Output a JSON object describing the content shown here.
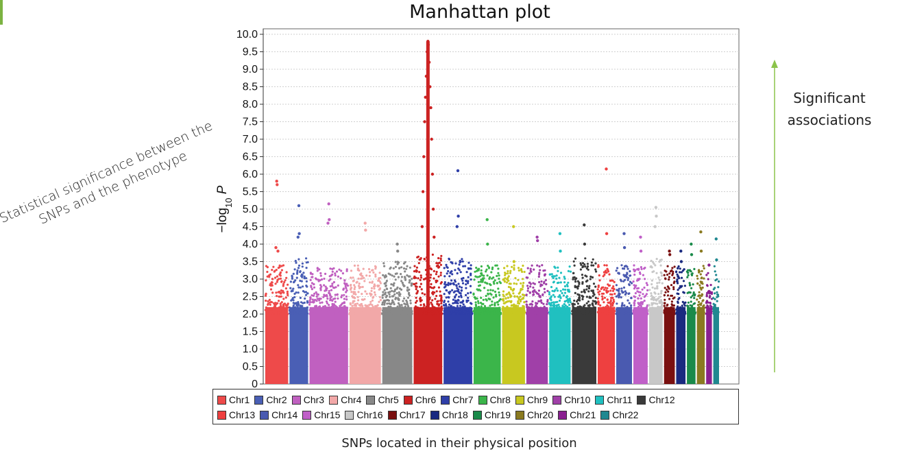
{
  "title": "Manhattan plot",
  "rotated_note": "Statistical significance between the SNPs and the phenotype",
  "significant_label": "Significant associations",
  "bottom_caption": "SNPs located in their physical position",
  "arrow_color": "#8bc34a",
  "chart_data": {
    "type": "scatter",
    "subtype": "manhattan",
    "ylabel": "-log10 P",
    "ylim": [
      0,
      10
    ],
    "yticks": [
      "0",
      "0.5",
      "1.0",
      "1.5",
      "2.0",
      "2.5",
      "3.0",
      "3.5",
      "4.0",
      "4.5",
      "5.0",
      "5.5",
      "6.0",
      "6.5",
      "7.0",
      "7.5",
      "8.0",
      "8.5",
      "9.0",
      "9.5",
      "10.0"
    ],
    "grid": true,
    "legend_position": "bottom",
    "series": [
      {
        "name": "Chr1",
        "color": "#ee4a4a",
        "typical_max": 3.0,
        "top_peaks": [
          5.8,
          5.7,
          3.9,
          3.8
        ]
      },
      {
        "name": "Chr2",
        "color": "#4a5fb5",
        "typical_max": 3.2,
        "top_peaks": [
          5.1,
          4.3,
          4.2
        ]
      },
      {
        "name": "Chr3",
        "color": "#c060c0",
        "typical_max": 3.0,
        "top_peaks": [
          5.15,
          4.7,
          4.6
        ]
      },
      {
        "name": "Chr4",
        "color": "#f2a8a8",
        "typical_max": 3.0,
        "top_peaks": [
          4.6,
          4.4
        ]
      },
      {
        "name": "Chr5",
        "color": "#888888",
        "typical_max": 3.1,
        "top_peaks": [
          4.0,
          3.8
        ]
      },
      {
        "name": "Chr6",
        "color": "#cc2222",
        "typical_max": 3.3,
        "top_peaks": [
          9.8,
          9.7,
          9.5,
          9.2,
          8.8,
          8.5,
          8.2,
          7.9,
          7.5,
          7.0,
          6.5,
          6.0,
          5.5,
          5.0,
          4.5,
          4.2
        ]
      },
      {
        "name": "Chr7",
        "color": "#2f3fa8",
        "typical_max": 3.2,
        "top_peaks": [
          6.1,
          4.8,
          4.5
        ]
      },
      {
        "name": "Chr8",
        "color": "#3bb54a",
        "typical_max": 3.0,
        "top_peaks": [
          4.7,
          4.0
        ]
      },
      {
        "name": "Chr9",
        "color": "#c8c820",
        "typical_max": 3.0,
        "top_peaks": [
          4.5,
          3.5
        ]
      },
      {
        "name": "Chr10",
        "color": "#a040a8",
        "typical_max": 3.0,
        "top_peaks": [
          4.2,
          4.1
        ]
      },
      {
        "name": "Chr11",
        "color": "#20c0c0",
        "typical_max": 3.0,
        "top_peaks": [
          4.3,
          3.8
        ]
      },
      {
        "name": "Chr12",
        "color": "#3a3a3a",
        "typical_max": 3.2,
        "top_peaks": [
          4.55,
          4.0
        ]
      },
      {
        "name": "Chr13",
        "color": "#ee4040",
        "typical_max": 3.0,
        "top_peaks": [
          6.15,
          4.3
        ]
      },
      {
        "name": "Chr14",
        "color": "#4a5ab0",
        "typical_max": 3.0,
        "top_peaks": [
          4.3,
          3.9
        ]
      },
      {
        "name": "Chr15",
        "color": "#c060c8",
        "typical_max": 3.0,
        "top_peaks": [
          4.2,
          3.8
        ]
      },
      {
        "name": "Chr16",
        "color": "#c8c8c8",
        "typical_max": 3.2,
        "top_peaks": [
          5.05,
          4.8,
          4.5
        ]
      },
      {
        "name": "Chr17",
        "color": "#7a1010",
        "typical_max": 3.0,
        "top_peaks": [
          3.8,
          3.7
        ]
      },
      {
        "name": "Chr18",
        "color": "#1a2a80",
        "typical_max": 3.0,
        "top_peaks": [
          3.8,
          3.5
        ]
      },
      {
        "name": "Chr19",
        "color": "#1a8a4a",
        "typical_max": 2.9,
        "top_peaks": [
          4.0,
          3.7
        ]
      },
      {
        "name": "Chr20",
        "color": "#8a7a20",
        "typical_max": 3.0,
        "top_peaks": [
          4.35,
          3.8
        ]
      },
      {
        "name": "Chr21",
        "color": "#8a2090",
        "typical_max": 2.8,
        "top_peaks": [
          3.4
        ]
      },
      {
        "name": "Chr22",
        "color": "#208890",
        "typical_max": 3.0,
        "top_peaks": [
          4.15,
          3.55
        ]
      }
    ]
  }
}
